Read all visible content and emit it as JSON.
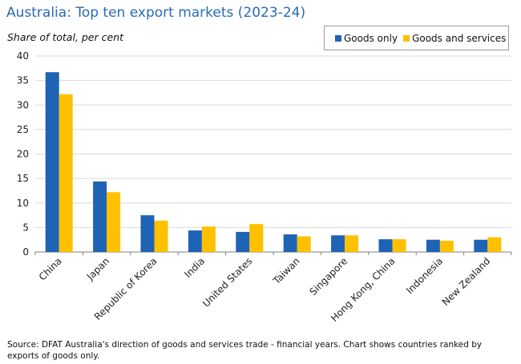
{
  "chart_data": {
    "type": "bar",
    "title": "Australia: Top ten export markets (2023-24)",
    "ylabel": "Share of  total, per cent",
    "xlabel": "",
    "categories": [
      "China",
      "Japan",
      "Republic of Korea",
      "India",
      "United States",
      "Taiwan",
      "Singapore",
      "Hong Kong, China",
      "Indonesia",
      "New Zealand"
    ],
    "series": [
      {
        "name": "Goods only",
        "color": "#1f63b5",
        "values": [
          36.7,
          14.4,
          7.5,
          4.4,
          4.1,
          3.6,
          3.4,
          2.6,
          2.5,
          2.5
        ]
      },
      {
        "name": "Goods and services",
        "color": "#ffc000",
        "values": [
          32.2,
          12.2,
          6.4,
          5.2,
          5.7,
          3.2,
          3.4,
          2.6,
          2.3,
          3.0
        ]
      }
    ],
    "ylim": [
      0,
      40
    ],
    "yticks": [
      0,
      5,
      10,
      15,
      20,
      25,
      30,
      35,
      40
    ],
    "grid": true,
    "legend_position": "top-right"
  },
  "source_note": "Source: DFAT Australia's direction of goods and services trade - financial years. Chart shows countries ranked by exports of goods only."
}
